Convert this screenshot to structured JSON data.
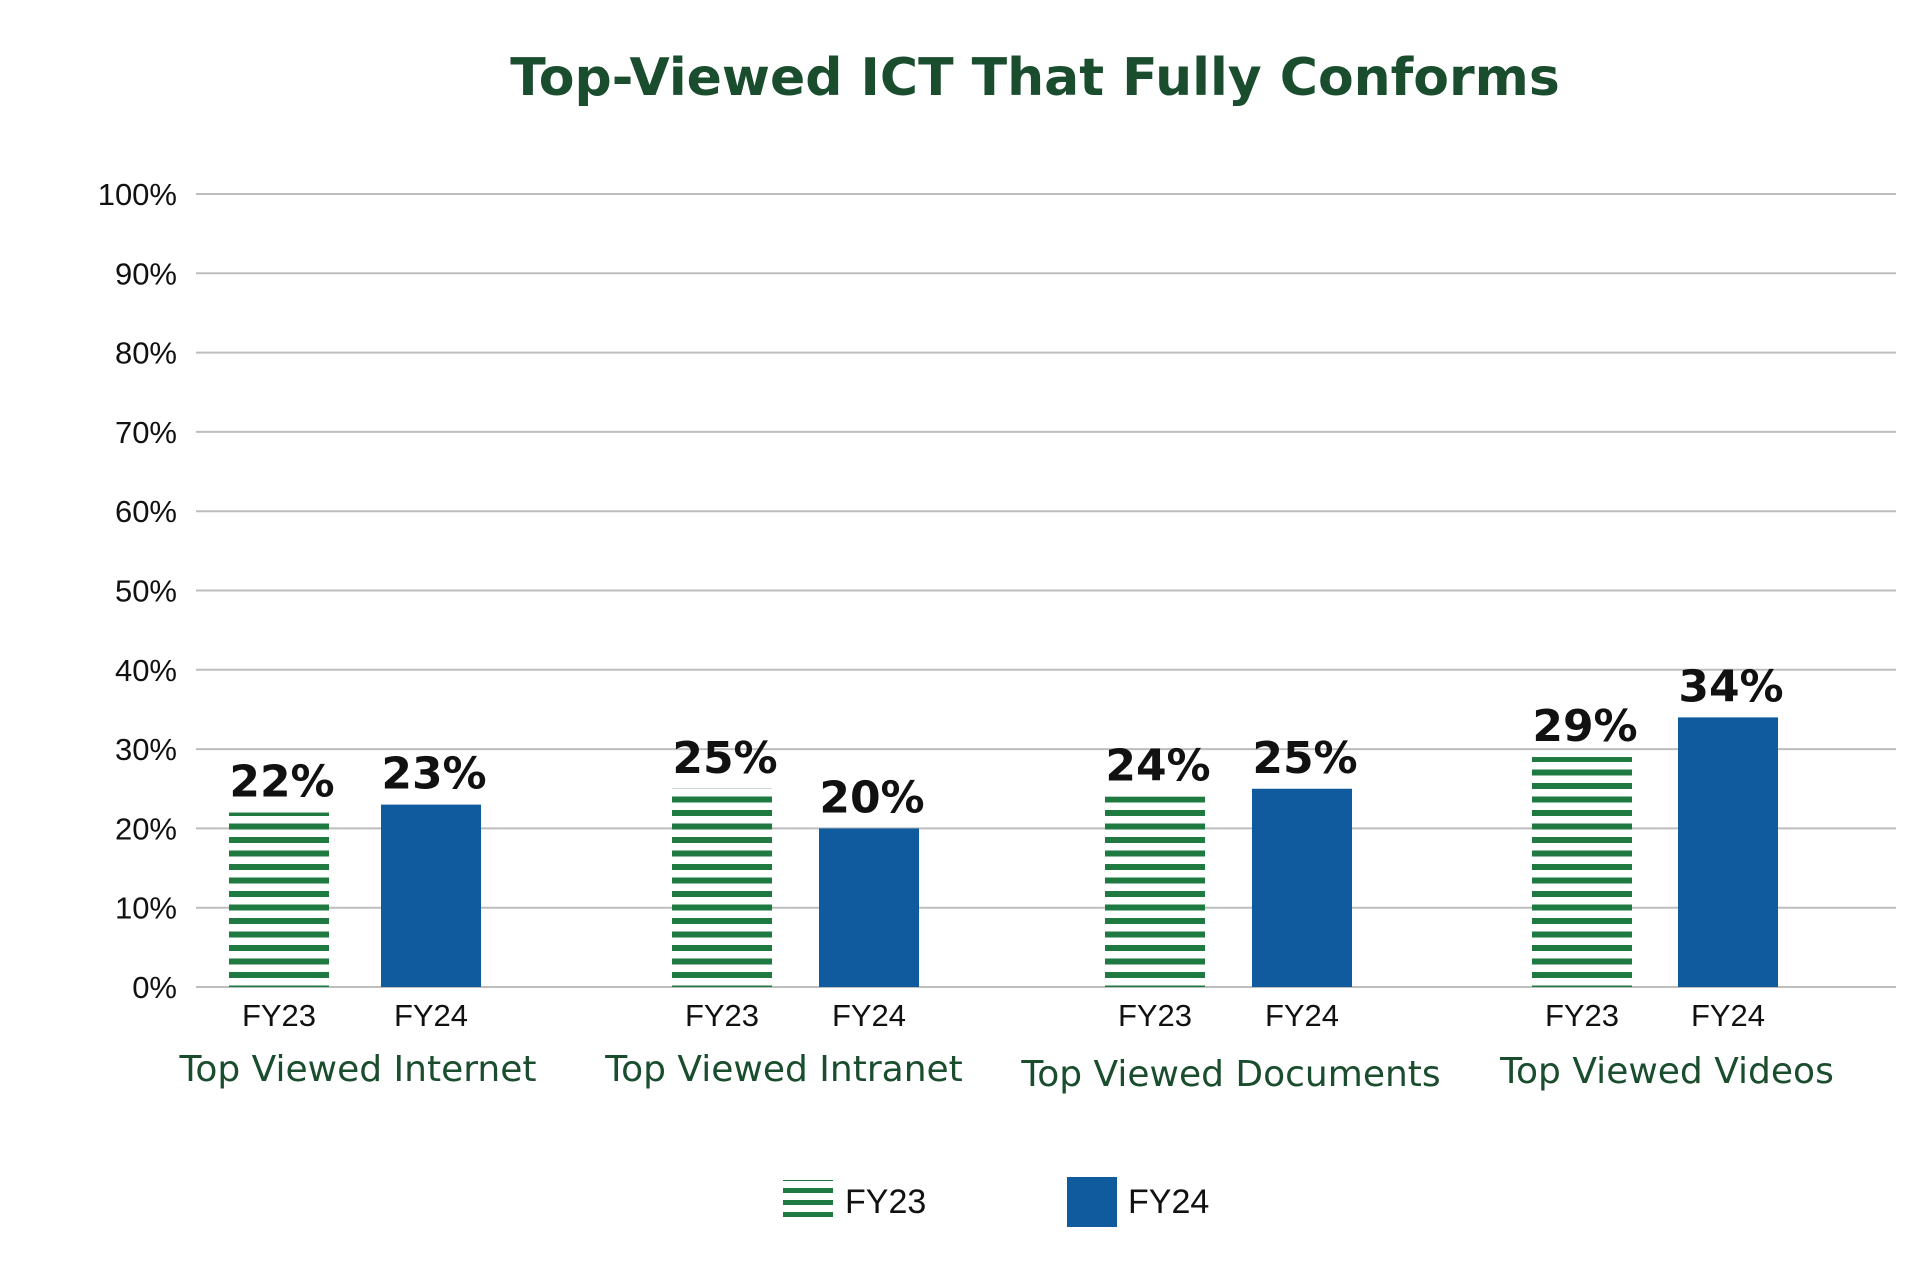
{
  "chart_data": {
    "type": "bar",
    "title": "Top-Viewed ICT That Fully Conforms",
    "groups": [
      "Top Viewed Internet",
      "Top Viewed Intranet",
      "Top Viewed Documents",
      "Top Viewed Videos"
    ],
    "series": [
      {
        "name": "FY23",
        "values": [
          22,
          25,
          24,
          29
        ],
        "color": "#1e7a40",
        "pattern": "horizontal-stripes"
      },
      {
        "name": "FY24",
        "values": [
          23,
          20,
          25,
          34
        ],
        "color": "#0f5b9e",
        "pattern": "solid"
      }
    ],
    "bar_labels": [
      "FY23",
      "FY24"
    ],
    "data_labels": [
      [
        "22%",
        "23%"
      ],
      [
        "25%",
        "20%"
      ],
      [
        "24%",
        "25%"
      ],
      [
        "29%",
        "34%"
      ]
    ],
    "y_ticks": [
      "0%",
      "10%",
      "20%",
      "30%",
      "40%",
      "50%",
      "60%",
      "70%",
      "80%",
      "90%",
      "100%"
    ],
    "ylim": [
      0,
      100
    ],
    "grid": true,
    "legend_position": "bottom-center",
    "legend": [
      "FY23",
      "FY24"
    ]
  }
}
